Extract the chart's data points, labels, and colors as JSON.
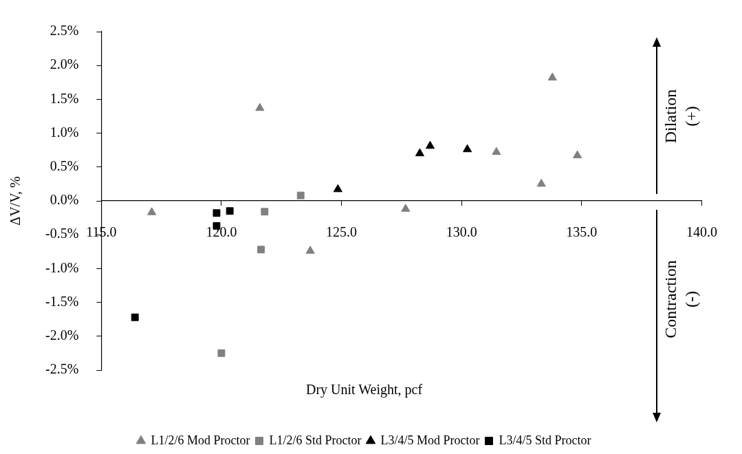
{
  "chart_data": {
    "type": "scatter",
    "xlabel": "Dry Unit Weight, pcf",
    "ylabel": "ΔV/V, %",
    "xlim": [
      115,
      140
    ],
    "xticks": [
      {
        "value": 115,
        "label": "115.0"
      },
      {
        "value": 120,
        "label": "120.0"
      },
      {
        "value": 125,
        "label": "125.0"
      },
      {
        "value": 130,
        "label": "130.0"
      },
      {
        "value": 135,
        "label": "135.0"
      },
      {
        "value": 140,
        "label": "140.0"
      }
    ],
    "ylim": [
      -2.5,
      2.5
    ],
    "yticks": [
      {
        "value": -2.5,
        "label": "-2.5%"
      },
      {
        "value": -2,
        "label": "-2.0%"
      },
      {
        "value": -1.5,
        "label": "-1.5%"
      },
      {
        "value": -1,
        "label": "-1.0%"
      },
      {
        "value": -0.5,
        "label": "-0.5%"
      },
      {
        "value": 0,
        "label": "0.0%"
      },
      {
        "value": 0.5,
        "label": "0.5%"
      },
      {
        "value": 1,
        "label": "1.0%"
      },
      {
        "value": 1.5,
        "label": "1.5%"
      },
      {
        "value": 2,
        "label": "2.0%"
      },
      {
        "value": 2.5,
        "label": "2.5%"
      }
    ],
    "grid": false,
    "legend": "bottom",
    "annotations": [
      "Dilation\n(+)",
      "Contraction\n(-)"
    ],
    "series": [
      {
        "name": "L1/2/6 Mod Proctor",
        "color": "#808080",
        "marker": "triangle",
        "x": [
          117.1,
          121.6,
          123.7,
          127.67,
          131.45,
          133.32,
          133.78,
          134.82
        ],
        "values": [
          -0.17,
          1.37,
          -0.74,
          -0.12,
          0.72,
          0.25,
          1.82,
          0.67
        ]
      },
      {
        "name": "L1/2/6 Std Proctor",
        "color": "#808080",
        "marker": "square",
        "x": [
          123.3,
          121.8,
          121.65,
          120.0
        ],
        "values": [
          0.08,
          -0.16,
          -0.72,
          -2.25
        ]
      },
      {
        "name": "L3/4/5 Mod Proctor",
        "color": "#000000",
        "marker": "triangle",
        "x": [
          124.85,
          128.26,
          128.69,
          130.24
        ],
        "values": [
          0.17,
          0.7,
          0.81,
          0.76
        ]
      },
      {
        "name": "L3/4/5 Std Proctor",
        "color": "#000000",
        "marker": "square",
        "x": [
          116.4,
          119.8,
          119.8,
          120.35
        ],
        "values": [
          -1.72,
          -0.18,
          -0.37,
          -0.15
        ]
      }
    ]
  }
}
